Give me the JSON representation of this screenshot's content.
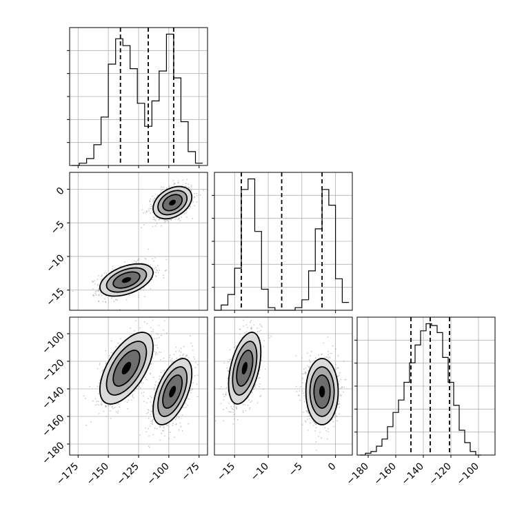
{
  "chart_data": {
    "type": "corner",
    "grid": true,
    "colors": {
      "points": "#9a9a9a",
      "fill_light": "#d9d9d9",
      "fill_mid": "#a8a8a8",
      "fill_dark": "#6e6e6e",
      "fill_core": "#000000",
      "line": "#000000"
    },
    "params": [
      {
        "range": [
          -182,
          -68
        ],
        "ticks": [
          -175,
          -150,
          -125,
          -100,
          -75
        ],
        "tick_labels": [
          "−175",
          "−150",
          "−125",
          "−100",
          "−75"
        ],
        "quantiles": [
          -140,
          -117,
          -96
        ],
        "hist": {
          "bins": [
            -180,
            -174,
            -168,
            -162,
            -156,
            -150,
            -144,
            -138,
            -132,
            -126,
            -120,
            -114,
            -108,
            -102,
            -96,
            -90,
            -84,
            -78,
            -72
          ],
          "counts": [
            0,
            1,
            3,
            9,
            21,
            44,
            55,
            52,
            42,
            27,
            17,
            28,
            41,
            57,
            38,
            19,
            6,
            1
          ]
        }
      },
      {
        "range": [
          -18,
          2.5
        ],
        "ticks": [
          -15,
          -10,
          -5,
          0
        ],
        "tick_labels": [
          "−15",
          "−10",
          "−5",
          "0"
        ],
        "quantiles": [
          -14,
          -8,
          -2
        ],
        "hist": {
          "bins": [
            -18,
            -17,
            -16,
            -15,
            -14,
            -13,
            -12,
            -11,
            -10,
            -9,
            -8,
            -7,
            -6,
            -5,
            -4,
            -3,
            -2,
            -1,
            0,
            1,
            2
          ],
          "counts": [
            0,
            2,
            6,
            16,
            46,
            50,
            30,
            8,
            1,
            0,
            0,
            0,
            1,
            4,
            15,
            31,
            46,
            40,
            12,
            3
          ]
        }
      },
      {
        "range": [
          -188,
          -88
        ],
        "ticks": [
          -180,
          -160,
          -140,
          -120,
          -100
        ],
        "tick_labels": [
          "−180",
          "−160",
          "−140",
          "−120",
          "−100"
        ],
        "quantiles": [
          -149,
          -135,
          -121
        ],
        "hist": {
          "bins": [
            -186,
            -182,
            -178,
            -174,
            -170,
            -166,
            -162,
            -158,
            -154,
            -150,
            -146,
            -142,
            -138,
            -134,
            -130,
            -126,
            -122,
            -118,
            -114,
            -110,
            -106,
            -102,
            -98
          ],
          "counts": [
            0,
            1,
            2,
            5,
            9,
            16,
            24,
            31,
            41,
            52,
            62,
            70,
            74,
            73,
            69,
            55,
            41,
            28,
            14,
            7,
            2,
            0
          ]
        }
      }
    ],
    "clusters": [
      {
        "means": [
          -135,
          -13.5,
          -125
        ],
        "sds": [
          11,
          1.2,
          13
        ],
        "corr": {
          "01": 0.45,
          "02": 0.6,
          "12": 0.45
        }
      },
      {
        "means": [
          -97,
          -2,
          -142
        ],
        "sds": [
          8,
          1.2,
          12
        ],
        "corr": {
          "01": 0.35,
          "02": 0.55,
          "12": 0.0
        }
      }
    ]
  }
}
